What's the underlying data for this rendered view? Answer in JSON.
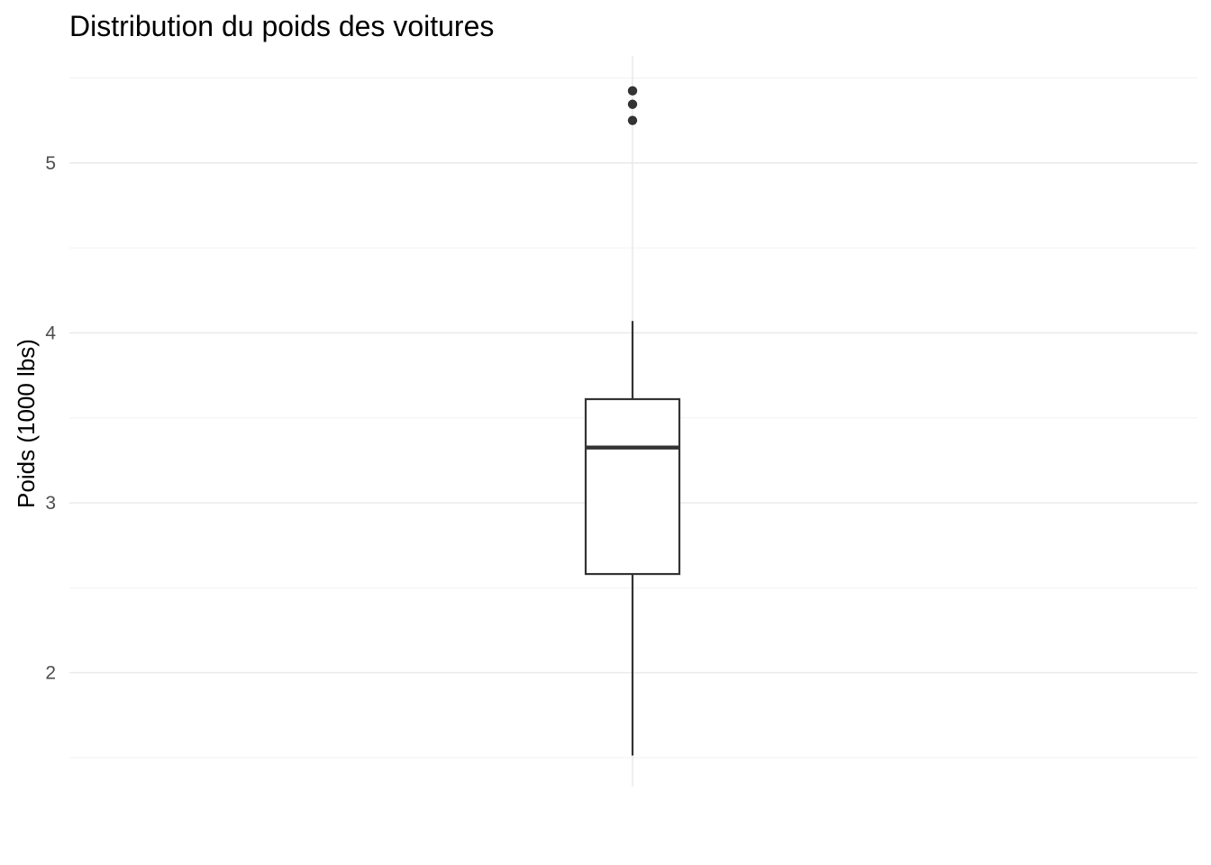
{
  "chart_data": {
    "type": "boxplot",
    "title": "Distribution du poids des voitures",
    "xlabel": "",
    "ylabel": "Poids (1000 lbs)",
    "ylim": [
      1.33,
      5.63
    ],
    "y_ticks": [
      2,
      3,
      4,
      5
    ],
    "y_tick_labels": [
      "2",
      "3",
      "4",
      "5"
    ],
    "y_minor_ticks": [
      1.5,
      2.5,
      3.5,
      4.5,
      5.5
    ],
    "x_tick_labels": [],
    "grid": true,
    "legend": "none",
    "box": {
      "whisker_low": 1.513,
      "q1": 2.581,
      "median": 3.325,
      "q3": 3.61,
      "whisker_high": 4.07,
      "outliers": [
        5.25,
        5.424,
        5.345
      ]
    },
    "colors": {
      "box_stroke": "#333333",
      "box_fill": "#ffffff",
      "outlier": "#333333",
      "grid": "#ebebeb"
    }
  }
}
